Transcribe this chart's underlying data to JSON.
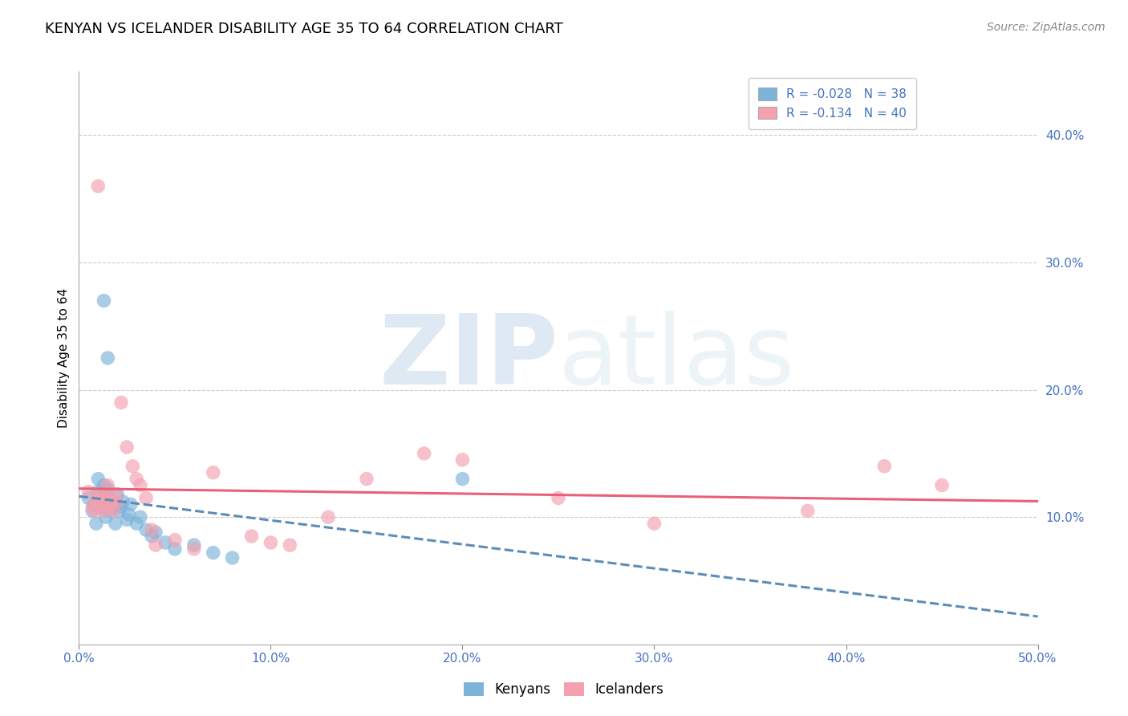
{
  "title": "KENYAN VS ICELANDER DISABILITY AGE 35 TO 64 CORRELATION CHART",
  "source": "Source: ZipAtlas.com",
  "ylabel": "Disability Age 35 to 64",
  "xlim": [
    0.0,
    0.5
  ],
  "ylim": [
    0.0,
    0.45
  ],
  "x_ticks": [
    0.0,
    0.1,
    0.2,
    0.3,
    0.4,
    0.5
  ],
  "x_tick_labels": [
    "0.0%",
    "10.0%",
    "20.0%",
    "30.0%",
    "40.0%",
    "50.0%"
  ],
  "y_ticks": [
    0.1,
    0.2,
    0.3,
    0.4
  ],
  "y_tick_labels": [
    "10.0%",
    "20.0%",
    "30.0%",
    "40.0%"
  ],
  "legend_r_blue": "R = -0.028",
  "legend_n_blue": "N = 38",
  "legend_r_pink": "R = -0.134",
  "legend_n_pink": "N = 40",
  "kenyan_x": [
    0.005,
    0.007,
    0.008,
    0.009,
    0.01,
    0.01,
    0.011,
    0.012,
    0.013,
    0.013,
    0.014,
    0.015,
    0.015,
    0.016,
    0.017,
    0.018,
    0.019,
    0.02,
    0.02,
    0.021,
    0.022,
    0.023,
    0.025,
    0.026,
    0.027,
    0.03,
    0.032,
    0.035,
    0.038,
    0.04,
    0.045,
    0.05,
    0.06,
    0.07,
    0.08,
    0.013,
    0.2,
    0.015
  ],
  "kenyan_y": [
    0.115,
    0.105,
    0.11,
    0.095,
    0.12,
    0.13,
    0.108,
    0.112,
    0.118,
    0.125,
    0.1,
    0.115,
    0.122,
    0.105,
    0.108,
    0.112,
    0.095,
    0.11,
    0.118,
    0.105,
    0.108,
    0.112,
    0.098,
    0.102,
    0.11,
    0.095,
    0.1,
    0.09,
    0.085,
    0.088,
    0.08,
    0.075,
    0.078,
    0.072,
    0.068,
    0.27,
    0.13,
    0.225
  ],
  "icelander_x": [
    0.005,
    0.007,
    0.008,
    0.009,
    0.01,
    0.011,
    0.012,
    0.013,
    0.014,
    0.015,
    0.015,
    0.016,
    0.017,
    0.018,
    0.019,
    0.02,
    0.022,
    0.025,
    0.028,
    0.03,
    0.032,
    0.035,
    0.038,
    0.04,
    0.05,
    0.06,
    0.07,
    0.09,
    0.1,
    0.11,
    0.13,
    0.15,
    0.18,
    0.2,
    0.25,
    0.3,
    0.38,
    0.42,
    0.45,
    0.01
  ],
  "icelander_y": [
    0.12,
    0.108,
    0.105,
    0.112,
    0.115,
    0.118,
    0.11,
    0.105,
    0.115,
    0.118,
    0.125,
    0.108,
    0.112,
    0.105,
    0.118,
    0.112,
    0.19,
    0.155,
    0.14,
    0.13,
    0.125,
    0.115,
    0.09,
    0.078,
    0.082,
    0.075,
    0.135,
    0.085,
    0.08,
    0.078,
    0.1,
    0.13,
    0.15,
    0.145,
    0.115,
    0.095,
    0.105,
    0.14,
    0.125,
    0.36
  ],
  "blue_color": "#7bb3d9",
  "pink_color": "#f4a0b0",
  "blue_line_color": "#5b8db8",
  "pink_line_color": "#e8607a",
  "watermark_zip": "ZIP",
  "watermark_atlas": "atlas",
  "title_fontsize": 13,
  "tick_color": "#4472c4"
}
